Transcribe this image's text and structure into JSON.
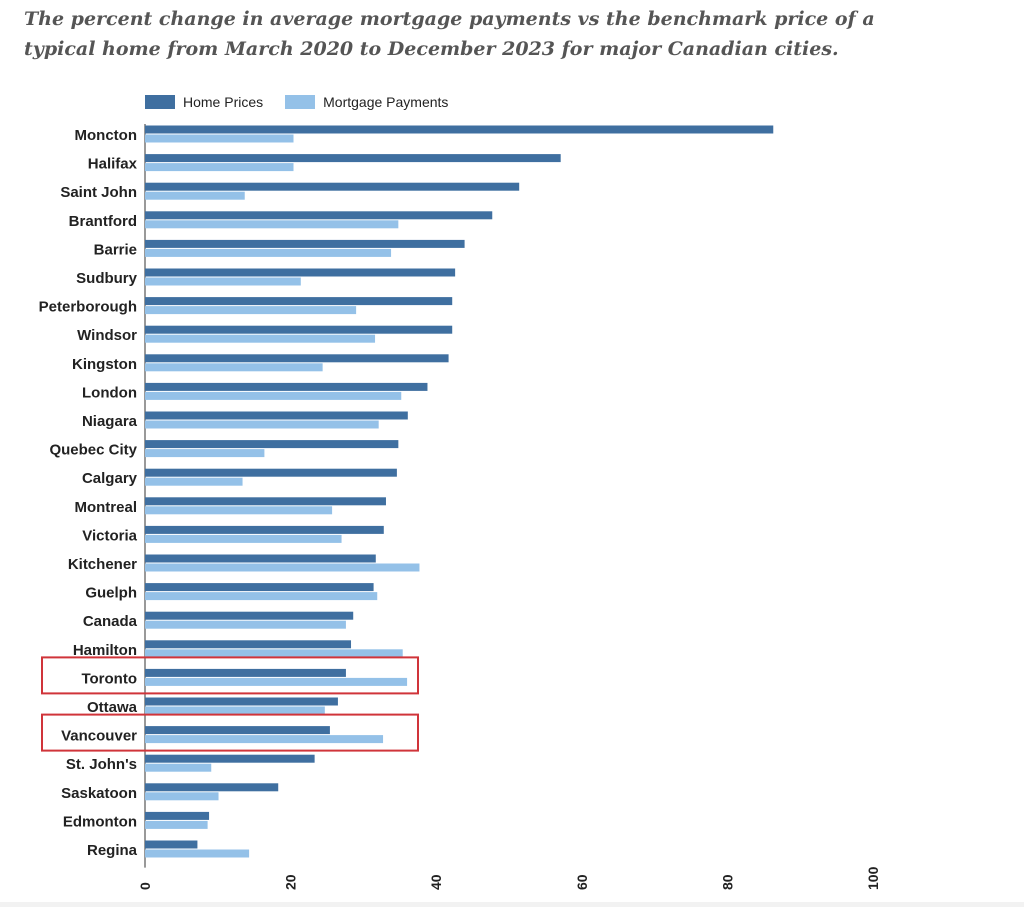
{
  "subtitle": "The percent change in average mortgage payments vs the benchmark price of a typical home from March 2020 to December 2023 for major Canadian cities.",
  "colors": {
    "home": "#3f6fa0",
    "mortgage": "#94c1e8",
    "highlight": "#d0343a"
  },
  "chart_data": {
    "type": "bar",
    "orientation": "horizontal",
    "categories": [
      "Moncton",
      "Halifax",
      "Saint John",
      "Brantford",
      "Barrie",
      "Sudbury",
      "Peterborough",
      "Windsor",
      "Kingston",
      "London",
      "Niagara",
      "Quebec City",
      "Calgary",
      "Montreal",
      "Victoria",
      "Kitchener",
      "Guelph",
      "Canada",
      "Hamilton",
      "Toronto",
      "Ottawa",
      "Vancouver",
      "St. John's",
      "Saskatoon",
      "Edmonton",
      "Regina"
    ],
    "series": [
      {
        "name": "Home Prices",
        "values": [
          86.3,
          57.1,
          51.4,
          47.7,
          43.9,
          42.6,
          42.2,
          42.2,
          41.7,
          38.8,
          36.1,
          34.8,
          34.6,
          33.1,
          32.8,
          31.7,
          31.4,
          28.6,
          28.3,
          27.6,
          26.5,
          25.4,
          23.3,
          18.3,
          8.8,
          7.2
        ]
      },
      {
        "name": "Mortgage Payments",
        "values": [
          20.4,
          20.4,
          13.7,
          34.8,
          33.8,
          21.4,
          29.0,
          31.6,
          24.4,
          35.2,
          32.1,
          16.4,
          13.4,
          25.7,
          27.0,
          37.7,
          31.9,
          27.6,
          35.4,
          36.0,
          24.7,
          32.7,
          9.1,
          10.1,
          8.6,
          14.3
        ]
      }
    ],
    "xlim": [
      0,
      100
    ],
    "xticks": [
      "0",
      "20",
      "40",
      "60",
      "80",
      "100"
    ],
    "highlighted": [
      "Toronto",
      "Vancouver"
    ],
    "legend": "top-left"
  }
}
